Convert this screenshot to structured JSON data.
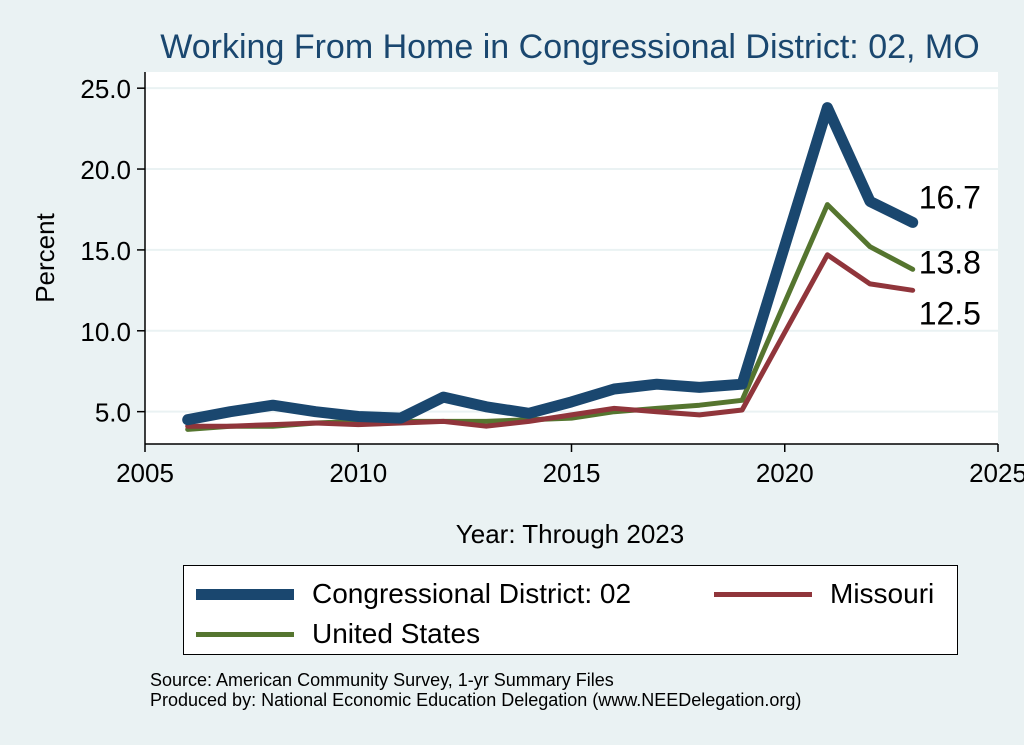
{
  "chart_data": {
    "type": "line",
    "title": "Working From Home in Congressional District: 02, MO",
    "xlabel": "Year: Through 2023",
    "ylabel": "Percent",
    "xlim": [
      2005,
      2025
    ],
    "ylim": [
      3,
      26
    ],
    "xticks": [
      2005,
      2010,
      2015,
      2020,
      2025
    ],
    "yticks": [
      5.0,
      10.0,
      15.0,
      20.0,
      25.0
    ],
    "grid": true,
    "legend_position": "bottom",
    "x": [
      2006,
      2007,
      2008,
      2009,
      2010,
      2011,
      2012,
      2013,
      2014,
      2015,
      2016,
      2017,
      2018,
      2019,
      2021,
      2022,
      2023
    ],
    "series": [
      {
        "name": "Congressional District: 02",
        "color": "#1a476f",
        "values": [
          4.5,
          5.0,
          5.4,
          5.0,
          4.7,
          4.6,
          5.9,
          5.3,
          4.9,
          5.6,
          6.4,
          6.7,
          6.5,
          6.7,
          23.8,
          18.0,
          16.7
        ]
      },
      {
        "name": "Missouri",
        "color": "#90353b",
        "values": [
          4.1,
          4.1,
          4.2,
          4.3,
          4.2,
          4.3,
          4.4,
          4.1,
          4.4,
          4.8,
          5.2,
          5.0,
          4.8,
          5.1,
          14.7,
          12.9,
          12.5
        ]
      },
      {
        "name": "United States",
        "color": "#55752f",
        "values": [
          3.9,
          4.1,
          4.1,
          4.3,
          4.4,
          4.4,
          4.4,
          4.4,
          4.5,
          4.6,
          5.0,
          5.2,
          5.4,
          5.7,
          17.8,
          15.2,
          13.8
        ]
      }
    ],
    "end_labels": [
      "16.7",
      "12.5",
      "13.8"
    ],
    "yticklabels": [
      "5.0",
      "10.0",
      "15.0",
      "20.0",
      "25.0"
    ],
    "xticklabels": [
      "2005",
      "2010",
      "2015",
      "2020",
      "2025"
    ]
  },
  "legend": {
    "items": [
      "Congressional District: 02",
      "Missouri",
      "United States"
    ]
  },
  "footer": {
    "source": "Source: American Community Survey, 1-yr Summary Files",
    "produced": "Produced by: National Economic Education Delegation (www.NEEDelegation.org)"
  }
}
